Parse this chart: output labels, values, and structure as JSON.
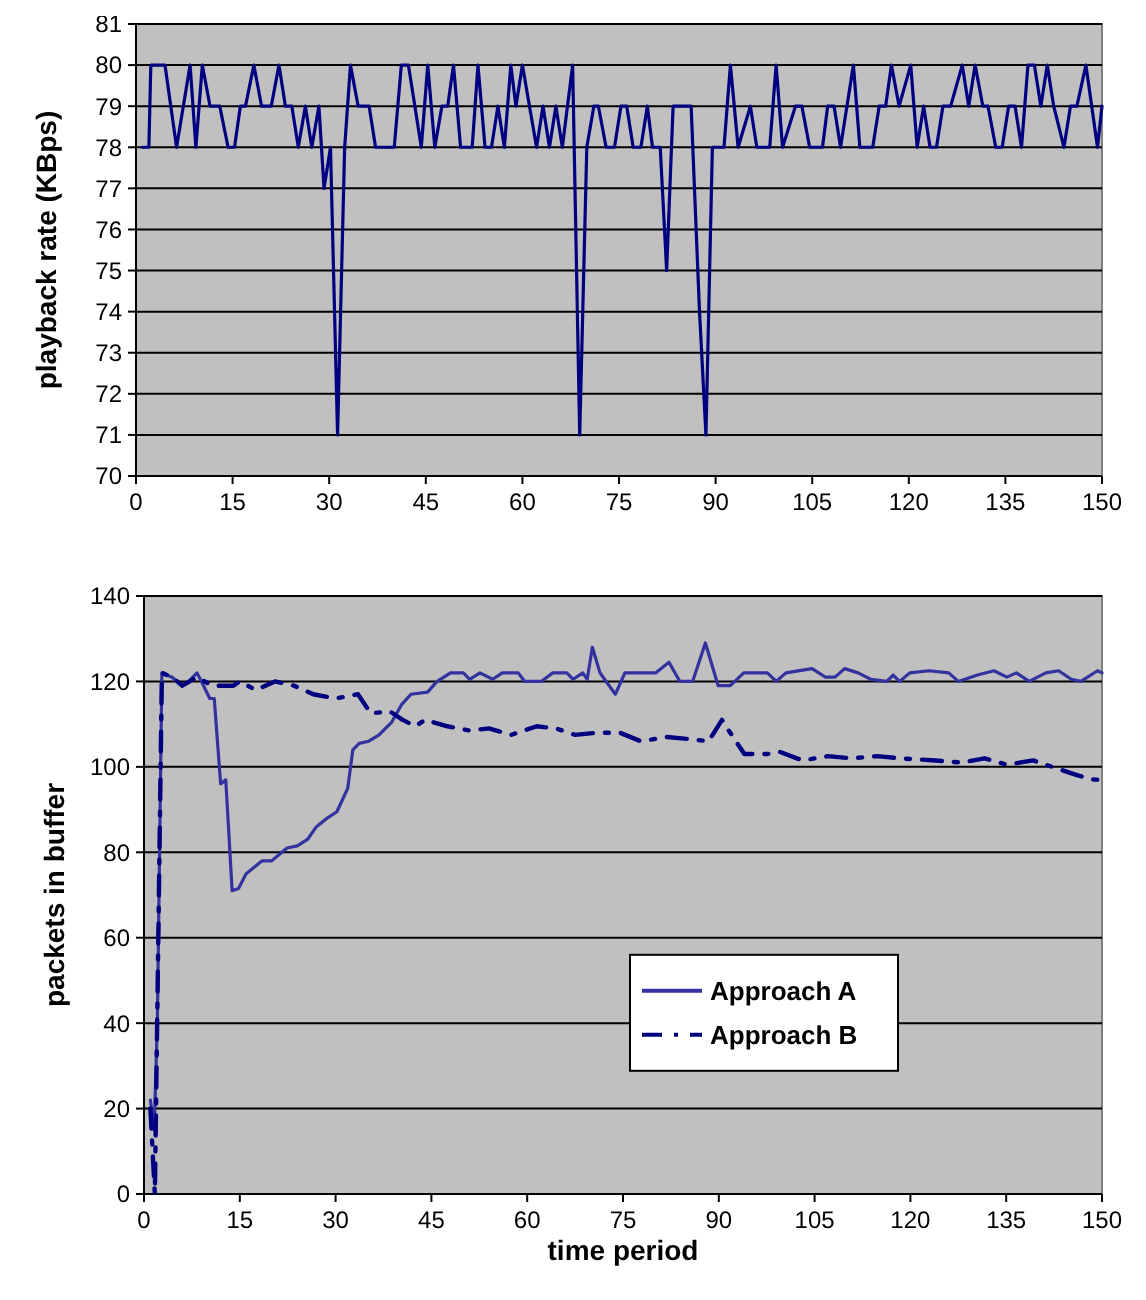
{
  "chart_data": [
    {
      "type": "line",
      "ylabel": "playback rate (KBps)",
      "xlim": [
        0,
        150
      ],
      "xticks": [
        0,
        15,
        30,
        45,
        60,
        75,
        90,
        105,
        120,
        135,
        150
      ],
      "ylim": [
        70,
        81
      ],
      "yticks": [
        70,
        71,
        72,
        73,
        74,
        75,
        76,
        77,
        78,
        79,
        80,
        81
      ],
      "grid": "y",
      "legend": false,
      "marker": "none",
      "series": [
        {
          "color": "#000080",
          "line_style": "solid",
          "x": [
            1,
            2,
            2.3,
            4.5,
            6.3,
            8.4,
            9.3,
            10.3,
            11.5,
            13,
            14.3,
            15.3,
            16.2,
            17,
            18.3,
            19.5,
            21,
            22.2,
            23.2,
            24.2,
            25.2,
            26.3,
            27.3,
            28.4,
            29.2,
            30.2,
            31.3,
            32.4,
            33.3,
            34.5,
            36.2,
            37.2,
            40.1,
            41.2,
            42.3,
            44.3,
            45.3,
            46.4,
            47.5,
            48.4,
            49.3,
            50.4,
            52.2,
            53.1,
            54.2,
            55.2,
            56.2,
            57.2,
            58.2,
            59,
            60,
            61.1,
            62.2,
            63.2,
            64.2,
            65.2,
            66.2,
            67.8,
            68.9,
            70,
            71.1,
            71.8,
            73,
            74.3,
            75.3,
            76.2,
            77.2,
            78.4,
            79.4,
            80.2,
            81.4,
            82.4,
            83.4,
            86.2,
            87.5,
            88.5,
            89.5,
            91.3,
            92.3,
            93.5,
            95.4,
            96.4,
            98.4,
            99.4,
            100.4,
            102.4,
            103.4,
            104.6,
            106.6,
            107.4,
            108.4,
            109.4,
            111.4,
            112.4,
            114.4,
            115.4,
            116.4,
            117.3,
            118.5,
            120.3,
            121.3,
            122.3,
            123.3,
            124.3,
            125.3,
            126.5,
            128.3,
            129.3,
            130.3,
            131.5,
            132.3,
            133.5,
            134.5,
            135.5,
            136.5,
            137.5,
            138.5,
            139.5,
            140.5,
            141.5,
            142.5,
            144.1,
            145.1,
            146.1,
            147.5,
            149.3,
            150
          ],
          "values": [
            78,
            78,
            80,
            80,
            78,
            80,
            78,
            80,
            79,
            79,
            78,
            78,
            79,
            79,
            80,
            79,
            79,
            80,
            79,
            79,
            78,
            79,
            78,
            79,
            77,
            78,
            71,
            78,
            80,
            79,
            79,
            78,
            78,
            80,
            80,
            78,
            80,
            78,
            79,
            79,
            80,
            78,
            78,
            80,
            78,
            78,
            79,
            78,
            80,
            79,
            80,
            79,
            78,
            79,
            78,
            79,
            78,
            80,
            71,
            78,
            79,
            79,
            78,
            78,
            79,
            79,
            78,
            78,
            79,
            78,
            78,
            75,
            79,
            79,
            74,
            71,
            78,
            78,
            80,
            78,
            79,
            78,
            78,
            80,
            78,
            79,
            79,
            78,
            78,
            79,
            79,
            78,
            80,
            78,
            78,
            79,
            79,
            80,
            79,
            80,
            78,
            79,
            78,
            78,
            79,
            79,
            80,
            79,
            80,
            79,
            79,
            78,
            78,
            79,
            79,
            78,
            80,
            80,
            79,
            80,
            79,
            78,
            79,
            79,
            80,
            78,
            79
          ]
        }
      ]
    },
    {
      "type": "line",
      "xlabel": "time period",
      "ylabel": "packets in buffer",
      "xlim": [
        0,
        150
      ],
      "xticks": [
        0,
        15,
        30,
        45,
        60,
        75,
        90,
        105,
        120,
        135,
        150
      ],
      "ylim": [
        0,
        140
      ],
      "yticks": [
        0,
        20,
        40,
        60,
        80,
        100,
        120,
        140
      ],
      "grid": "y",
      "legend": "right",
      "marker": "none",
      "series": [
        {
          "name": "Approach A",
          "color": "#3333a0",
          "line_style": "solid",
          "x": [
            1,
            1.6,
            2.1,
            2.8,
            4.4,
            6,
            7,
            8.3,
            9,
            10.3,
            11,
            12,
            12.8,
            13.8,
            14.8,
            16,
            18.5,
            20,
            22.4,
            24,
            25.6,
            27,
            28.7,
            30.2,
            31.9,
            32.7,
            33.7,
            35.2,
            36.8,
            38.8,
            40.3,
            41.8,
            44.4,
            45.9,
            48,
            50,
            51,
            52.6,
            54.6,
            56.1,
            58.6,
            59.6,
            62.2,
            64,
            66.2,
            67.2,
            68.7,
            69.4,
            70.2,
            71.4,
            73.8,
            75.3,
            78.3,
            80.1,
            82.2,
            83.9,
            85.9,
            87.9,
            89.9,
            91.8,
            93.9,
            97.6,
            99,
            100.5,
            104.6,
            106.7,
            108.2,
            109.7,
            111.8,
            113.8,
            116.3,
            117.3,
            118.3,
            119.9,
            122.9,
            126,
            127.5,
            130.5,
            133.1,
            135.1,
            136.6,
            138.6,
            141.2,
            143.2,
            145.2,
            146.7,
            149.3,
            150
          ],
          "values": [
            22,
            15,
            41,
            122,
            121,
            119,
            120,
            122,
            120,
            116,
            116,
            96,
            97,
            71,
            71.5,
            75,
            78,
            78,
            81,
            81.5,
            83,
            86,
            88,
            89.5,
            95,
            104,
            105.5,
            106,
            107.5,
            110.5,
            114.5,
            117,
            117.5,
            120,
            122,
            122,
            120.5,
            122,
            120.5,
            122,
            122,
            120,
            120,
            122,
            122,
            120.5,
            122,
            120.5,
            128,
            122,
            117,
            122,
            122,
            122,
            124.5,
            120,
            120,
            129,
            119,
            119,
            122,
            122,
            120,
            122,
            123,
            121,
            121,
            123,
            122,
            120.5,
            120,
            121.5,
            120,
            122,
            122.5,
            122,
            120,
            121.5,
            122.5,
            121,
            122,
            120,
            122,
            122.5,
            120.5,
            120,
            122.5,
            122
          ]
        },
        {
          "name": "Approach B",
          "color": "#000080",
          "line_style": "dashed",
          "x": [
            1,
            1.7,
            2.8,
            4.4,
            6,
            8.3,
            10.7,
            14,
            15,
            17.5,
            20.5,
            23.5,
            26.5,
            30,
            33.5,
            35.5,
            38.5,
            40.5,
            42.5,
            44,
            47.5,
            51,
            54,
            57.5,
            61.5,
            64.5,
            67.5,
            71,
            74.5,
            77.8,
            81.9,
            85.4,
            88.4,
            90.5,
            92,
            94,
            97.6,
            99.6,
            103.1,
            107.1,
            110.7,
            114.8,
            118.3,
            123.9,
            128,
            131.6,
            135.1,
            139.2,
            142.2,
            146.2,
            148.8,
            150
          ],
          "values": [
            20,
            0,
            122,
            121,
            119,
            121,
            119,
            119,
            120,
            118,
            120,
            119,
            117,
            116,
            117,
            112.5,
            113,
            111,
            109.5,
            111,
            109.5,
            108.5,
            109,
            107.5,
            109.5,
            109,
            107.5,
            108,
            108,
            106,
            107,
            106.5,
            106,
            111,
            107.5,
            103,
            103,
            103.5,
            101.5,
            102.5,
            102,
            102.5,
            102,
            101.5,
            101,
            102,
            100.5,
            101.5,
            100,
            98,
            97,
            97
          ]
        }
      ]
    }
  ]
}
